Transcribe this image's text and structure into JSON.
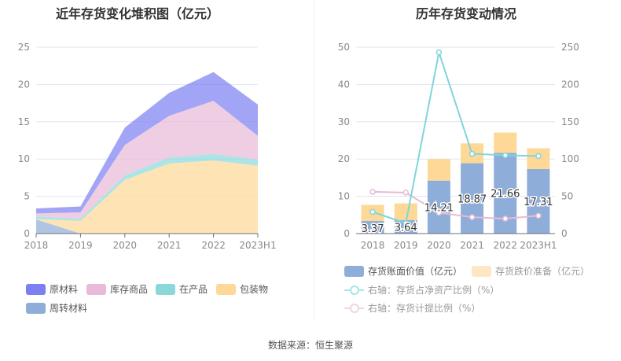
{
  "footer": "数据来源：恒生聚源",
  "chart_data": [
    {
      "type": "area",
      "stacked": true,
      "title": "近年存货变化堆积图（亿元）",
      "categories": [
        "2018",
        "2019",
        "2020",
        "2021",
        "2022",
        "2023H1"
      ],
      "ylim": [
        0,
        25
      ],
      "yticks": [
        "0",
        "5",
        "10",
        "15",
        "20",
        "25"
      ],
      "series": [
        {
          "name": "周转材料",
          "color": "#8fadd9",
          "values": [
            1.9,
            0,
            0,
            0,
            0,
            0
          ]
        },
        {
          "name": "包装物",
          "color": "#fdd896",
          "values": [
            0.05,
            1.7,
            7.2,
            9.4,
            9.8,
            9.1
          ]
        },
        {
          "name": "在产品",
          "color": "#8ad8da",
          "values": [
            0.35,
            0.3,
            0.6,
            0.8,
            0.9,
            0.8
          ]
        },
        {
          "name": "库存商品",
          "color": "#e8b9d8",
          "values": [
            0.4,
            0.85,
            4.1,
            5.6,
            7.1,
            3.2
          ]
        },
        {
          "name": "原材料",
          "color": "#7b7ff2",
          "values": [
            0.67,
            0.79,
            2.31,
            3.07,
            3.86,
            4.21
          ]
        }
      ],
      "legend_order": [
        "原材料",
        "库存商品",
        "在产品",
        "包装物",
        "周转材料"
      ]
    },
    {
      "type": "bar+line",
      "title": "历年存货变动情况",
      "categories": [
        "2018",
        "2019",
        "2020",
        "2021",
        "2022",
        "2023H1"
      ],
      "ylim": [
        0,
        50
      ],
      "y2lim": [
        0,
        250
      ],
      "yticks": [
        "0",
        "10",
        "20",
        "30",
        "40",
        "50"
      ],
      "y2ticks": [
        "0",
        "50",
        "100",
        "150",
        "200",
        "250"
      ],
      "bars": [
        {
          "name": "存货账面价值（亿元）",
          "color": "#8fadd9",
          "values": [
            3.37,
            3.64,
            14.21,
            18.87,
            21.66,
            17.31
          ],
          "labels": [
            "3.37",
            "3.64",
            "14.21",
            "18.87",
            "21.66",
            "17.31"
          ]
        },
        {
          "name": "存货跌价准备（亿元）",
          "color": "#fdd896",
          "values": [
            4.33,
            4.46,
            5.79,
            5.33,
            5.44,
            5.59
          ]
        }
      ],
      "lines": [
        {
          "name": "右轴：存货占净资产比例（%）",
          "color": "#7fd6da",
          "values": [
            29,
            14,
            243,
            107,
            105,
            104
          ]
        },
        {
          "name": "右轴：存货计提比例（%）",
          "color": "#e8b9d8",
          "values": [
            56,
            55,
            28,
            22,
            20,
            24
          ]
        }
      ]
    }
  ]
}
